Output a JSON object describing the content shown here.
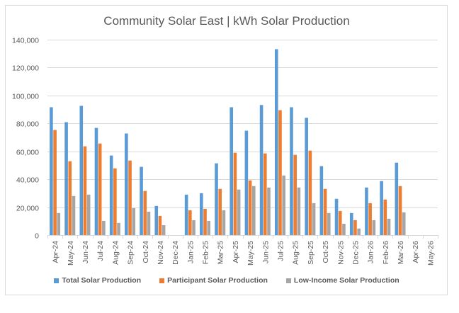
{
  "chart_data": {
    "type": "bar",
    "title": "Community Solar East | kWh Solar Production",
    "xlabel": "",
    "ylabel": "",
    "ylim": [
      0,
      140000
    ],
    "yticks": [
      0,
      20000,
      40000,
      60000,
      80000,
      100000,
      120000,
      140000
    ],
    "ytick_labels": [
      "0",
      "20,000",
      "40,000",
      "60,000",
      "80,000",
      "100,000",
      "120,000",
      "140,000"
    ],
    "grid": true,
    "legend_position": "bottom",
    "categories": [
      "Apr-24",
      "May-24",
      "Jun-24",
      "Jul-24",
      "Aug-24",
      "Sep-24",
      "Oct-24",
      "Nov-24",
      "Dec-24",
      "Jan-25",
      "Feb-25",
      "Mar-25",
      "Apr-25",
      "May-25",
      "Jun-25",
      "Jul-25",
      "Aug-25",
      "Sep-25",
      "Oct-25",
      "Nov-25",
      "Dec-25",
      "Jan-26",
      "Feb-26",
      "Mar-26",
      "Apr-26",
      "May-26"
    ],
    "series": [
      {
        "name": "Total Solar Production",
        "color": "#5b9bd5",
        "values": [
          91600,
          80900,
          92600,
          76800,
          57000,
          72800,
          48900,
          20900,
          null,
          29000,
          30000,
          51400,
          91600,
          74800,
          93200,
          133200,
          91600,
          84000,
          49400,
          26000,
          15800,
          34100,
          38700,
          51900,
          null,
          null
        ]
      },
      {
        "name": "Participant Solar Production",
        "color": "#ed7d31",
        "values": [
          75300,
          52900,
          63600,
          65600,
          47800,
          53400,
          31600,
          13700,
          null,
          17800,
          18800,
          33100,
          59000,
          39200,
          58500,
          89500,
          57500,
          60500,
          33100,
          17300,
          10700,
          22900,
          25500,
          35100,
          null,
          null
        ]
      },
      {
        "name": "Low-Income Solar Production",
        "color": "#a5a5a5",
        "values": [
          15800,
          28000,
          29000,
          10200,
          8700,
          19300,
          16800,
          7100,
          null,
          10700,
          10200,
          17800,
          32600,
          35100,
          34100,
          42700,
          34100,
          22900,
          15800,
          8100,
          4700,
          10700,
          11700,
          16300,
          null,
          null
        ]
      }
    ]
  }
}
